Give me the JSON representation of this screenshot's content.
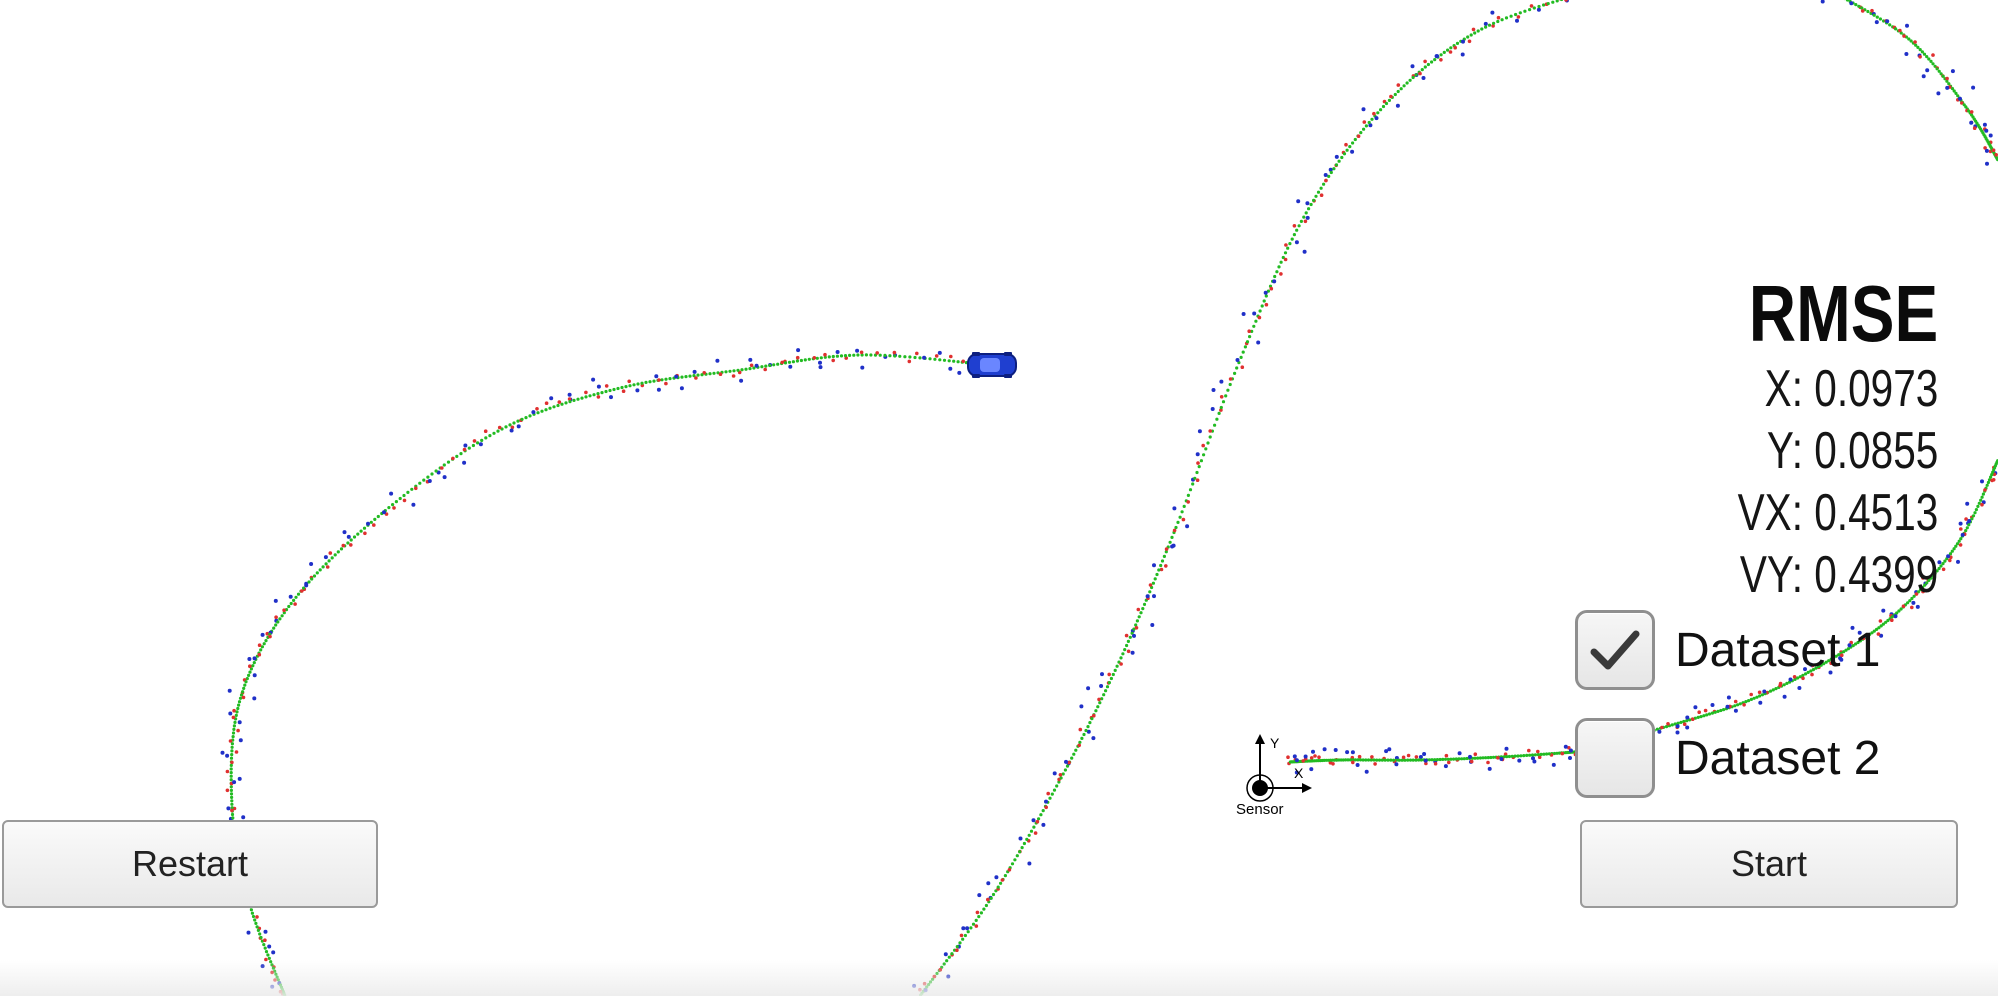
{
  "rmse": {
    "title": "RMSE",
    "x": "X: 0.0973",
    "y": "Y: 0.0855",
    "vx": "VX: 0.4513",
    "vy": "VY: 0.4399"
  },
  "datasets": [
    {
      "label": "Dataset 1",
      "checked": true
    },
    {
      "label": "Dataset 2",
      "checked": false
    }
  ],
  "buttons": {
    "restart": "Restart",
    "start": "Start"
  },
  "sensor": {
    "label": "Sensor",
    "axis_x": "X",
    "axis_y": "Y"
  },
  "colors": {
    "ground_truth": "#22bb22",
    "lidar": "#e03030",
    "radar": "#2030c8",
    "car": "#1f3fd0"
  },
  "icons": {
    "car": "car-icon",
    "sensor": "sensor-origin-icon",
    "check": "checkmark-icon"
  }
}
